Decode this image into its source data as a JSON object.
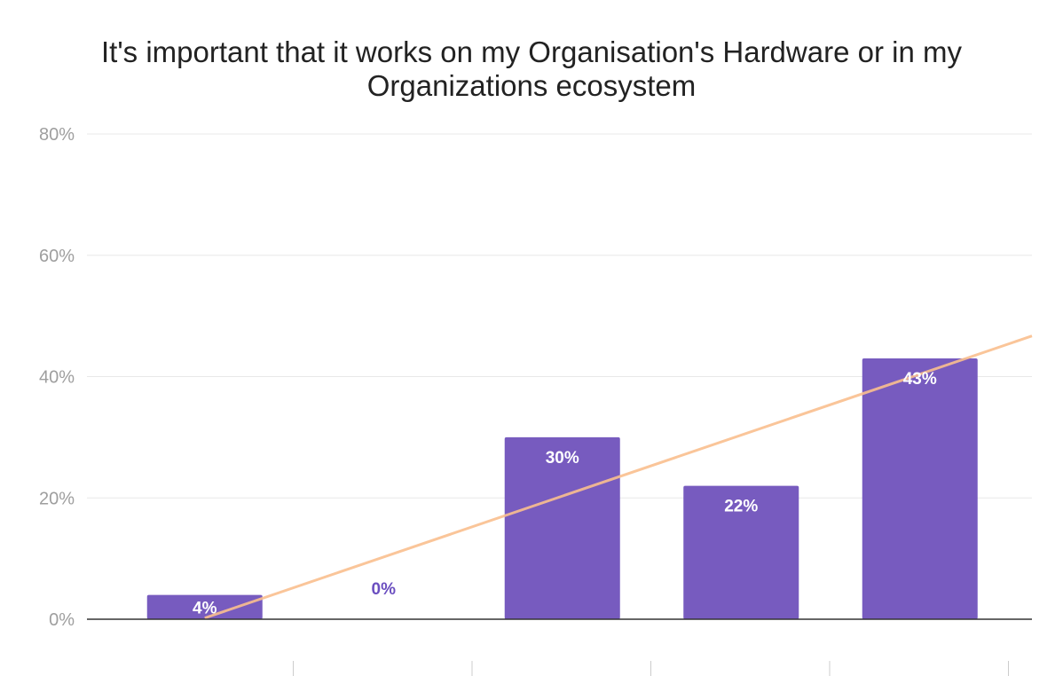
{
  "chart_data": {
    "type": "bar",
    "title_lines": [
      "It's important that it works on my Organisation's Hardware or in my",
      "Organizations ecosystem"
    ],
    "categories": [
      "",
      "",
      "",
      "",
      ""
    ],
    "values": [
      4,
      0,
      30,
      22,
      43
    ],
    "value_suffix": "%",
    "ylim": [
      0,
      80
    ],
    "yticks": [
      0,
      20,
      40,
      60,
      80
    ],
    "ytick_labels": [
      "0%",
      "20%",
      "40%",
      "60%",
      "80%"
    ],
    "trendline": {
      "start": 0.2,
      "end": 46.7
    },
    "grid": true,
    "legend": "none",
    "colors": {
      "bar": "#775bbf",
      "trendline": "#f9bf8e",
      "grid": "#e8e8e8",
      "axis": "#333333",
      "label_inside": "#ffffff",
      "label_outside": "#6b4fc0"
    }
  }
}
